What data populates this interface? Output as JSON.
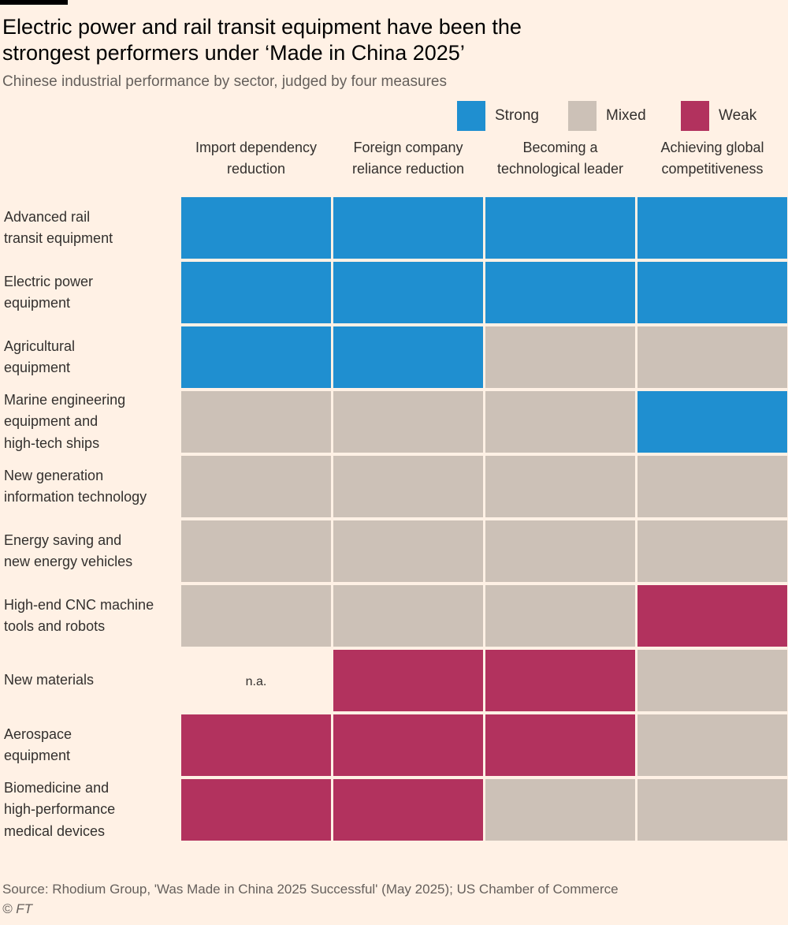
{
  "chart_data": {
    "type": "heatmap",
    "title": "Electric power and rail transit equipment have been the strongest performers under ‘Made in China 2025’",
    "subtitle": "Chinese industrial performance by sector, judged by four measures",
    "legend": [
      {
        "key": "strong",
        "label": "Strong",
        "color": "#1f8fd0"
      },
      {
        "key": "mixed",
        "label": "Mixed",
        "color": "#ccc1b7"
      },
      {
        "key": "weak",
        "label": "Weak",
        "color": "#b2325e"
      }
    ],
    "na_color": "#fff1e5",
    "na_label": "n.a.",
    "columns": [
      "Import dependency reduction",
      "Foreign company reliance reduction",
      "Becoming a technological leader",
      "Achieving global competitiveness"
    ],
    "column_lines": [
      [
        "Import dependency",
        "reduction"
      ],
      [
        "Foreign company",
        "reliance reduction"
      ],
      [
        "Becoming a",
        "technological leader"
      ],
      [
        "Achieving global",
        "competitiveness"
      ]
    ],
    "rows": [
      {
        "label": "Advanced rail transit equipment",
        "lines": [
          "Advanced rail",
          "transit equipment"
        ],
        "values": [
          "strong",
          "strong",
          "strong",
          "strong"
        ]
      },
      {
        "label": "Electric power equipment",
        "lines": [
          "Electric power",
          "equipment"
        ],
        "values": [
          "strong",
          "strong",
          "strong",
          "strong"
        ]
      },
      {
        "label": "Agricultural equipment",
        "lines": [
          "Agricultural",
          "equipment"
        ],
        "values": [
          "strong",
          "strong",
          "mixed",
          "mixed"
        ]
      },
      {
        "label": "Marine engineering equipment and high-tech ships",
        "lines": [
          "Marine engineering",
          "equipment and",
          "high-tech ships"
        ],
        "values": [
          "mixed",
          "mixed",
          "mixed",
          "strong"
        ]
      },
      {
        "label": "New generation information technology",
        "lines": [
          "New generation",
          "information technology"
        ],
        "values": [
          "mixed",
          "mixed",
          "mixed",
          "mixed"
        ]
      },
      {
        "label": "Energy saving and new energy vehicles",
        "lines": [
          "Energy saving and",
          "new energy vehicles"
        ],
        "values": [
          "mixed",
          "mixed",
          "mixed",
          "mixed"
        ]
      },
      {
        "label": "High-end CNC machine tools and robots",
        "lines": [
          "High-end CNC machine",
          "tools and robots"
        ],
        "values": [
          "mixed",
          "mixed",
          "mixed",
          "weak"
        ]
      },
      {
        "label": "New materials",
        "lines": [
          "New materials"
        ],
        "values": [
          "na",
          "weak",
          "weak",
          "mixed"
        ]
      },
      {
        "label": "Aerospace equipment",
        "lines": [
          "Aerospace",
          "equipment"
        ],
        "values": [
          "weak",
          "weak",
          "weak",
          "mixed"
        ]
      },
      {
        "label": "Biomedicine and high-performance medical devices",
        "lines": [
          "Biomedicine and",
          "high-performance",
          "medical devices"
        ],
        "values": [
          "weak",
          "weak",
          "mixed",
          "mixed"
        ]
      }
    ]
  },
  "footer": {
    "source": "Source: Rhodium Group, 'Was Made in China 2025 Successful' (May 2025); US Chamber of Commerce",
    "credit": "© FT"
  }
}
